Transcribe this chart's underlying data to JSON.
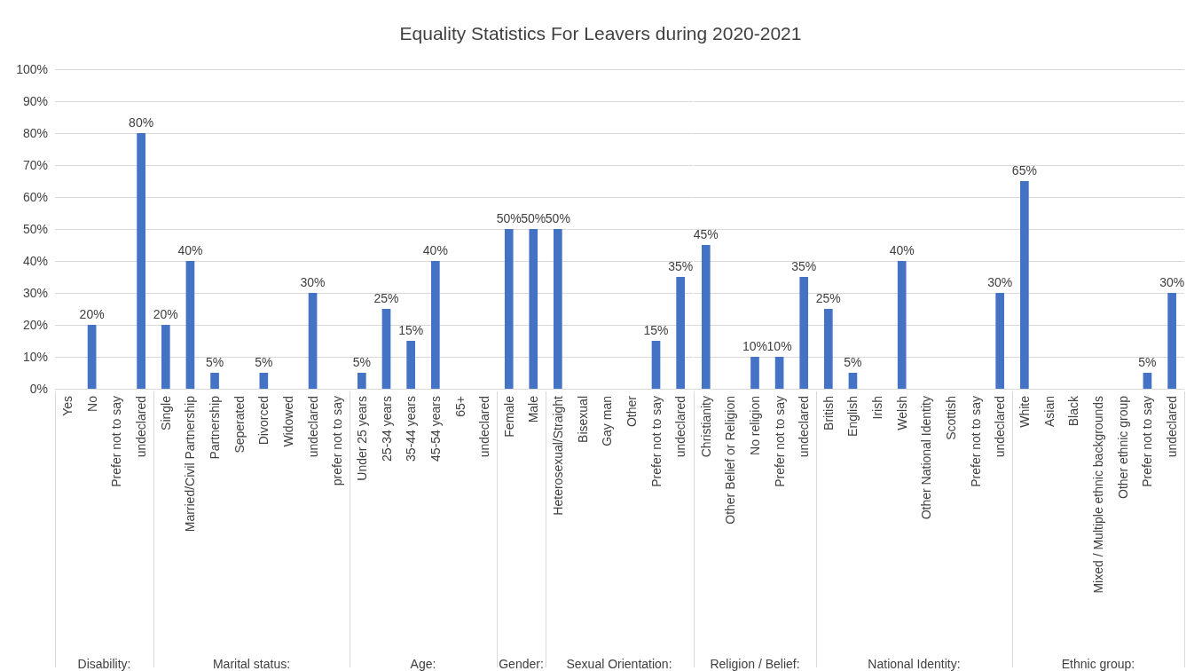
{
  "chart_data": [
    {
      "type": "other",
      "title": "Equality Statistics For Leavers during 2020-2021"
    },
    {
      "type": "bar",
      "xlabel": "Disability:",
      "categories": [
        "Yes",
        "No",
        "Prefer not to say",
        "undeclared"
      ],
      "values": [
        null,
        20,
        null,
        80
      ],
      "value_labels": [
        null,
        "20%",
        null,
        "80%"
      ],
      "color": "#4472c4",
      "ylim": [
        0,
        100
      ],
      "yticks": [
        {
          "value": 0,
          "label": "0%"
        },
        {
          "value": 10,
          "label": "10%"
        },
        {
          "value": 20,
          "label": "20%"
        },
        {
          "value": 30,
          "label": "30%"
        },
        {
          "value": 40,
          "label": "40%"
        },
        {
          "value": 50,
          "label": "50%"
        },
        {
          "value": 60,
          "label": "60%"
        },
        {
          "value": 70,
          "label": "70%"
        },
        {
          "value": 80,
          "label": "80%"
        },
        {
          "value": 90,
          "label": "90%"
        },
        {
          "value": 100,
          "label": "100%"
        }
      ],
      "grid": "y"
    },
    {
      "type": "bar",
      "xlabel": "Marital status:",
      "categories": [
        "Single",
        "Married/Civil Partnership",
        "Partnership",
        "Seperated",
        "Divorced",
        "Widowed",
        "undeclared",
        "prefer not to say"
      ],
      "values": [
        20,
        40,
        5,
        null,
        5,
        null,
        30,
        null
      ],
      "value_labels": [
        "20%",
        "40%",
        "5%",
        null,
        "5%",
        null,
        "30%",
        null
      ],
      "color": "#4472c4",
      "ylim": [
        0,
        100
      ],
      "yticks": [
        0,
        10,
        20,
        30,
        40,
        50,
        60,
        70,
        80,
        90,
        100
      ],
      "grid": "y",
      "tick_labels": "x"
    },
    {
      "type": "bar",
      "xlabel": "Age:",
      "categories": [
        "Under 25 years",
        "25-34 years",
        "35-44 years",
        "45-54 years",
        "65+",
        "undeclared"
      ],
      "values": [
        5,
        25,
        15,
        40,
        null,
        null
      ],
      "value_labels": [
        "5%",
        "25%",
        "15%",
        "40%",
        null,
        null
      ],
      "color": "#4472c4",
      "ylim": [
        0,
        100
      ],
      "yticks": [
        0,
        10,
        20,
        30,
        40,
        50,
        60,
        70,
        80,
        90,
        100
      ],
      "grid": "y",
      "tick_labels": "x"
    },
    {
      "type": "bar",
      "xlabel": "Gender:",
      "categories": [
        "Female",
        "Male"
      ],
      "values": [
        50,
        50
      ],
      "value_labels": [
        "50%",
        "50%"
      ],
      "color": "#4472c4",
      "ylim": [
        0,
        100
      ],
      "yticks": [
        0,
        10,
        20,
        30,
        40,
        50,
        60,
        70,
        80,
        90,
        100
      ],
      "grid": "y",
      "tick_labels": "x"
    },
    {
      "type": "bar",
      "xlabel": "Sexual Orientation:",
      "categories": [
        "Heterosexual/Straight",
        "Bisexual",
        "Gay man",
        "Other",
        "Prefer not to say",
        "undeclared"
      ],
      "values": [
        50,
        null,
        null,
        null,
        15,
        35
      ],
      "value_labels": [
        "50%",
        null,
        null,
        null,
        "15%",
        "35%"
      ],
      "color": "#4472c4",
      "ylim": [
        0,
        100
      ],
      "yticks": [
        0,
        10,
        20,
        30,
        40,
        50,
        60,
        70,
        80,
        90,
        100
      ],
      "grid": "y",
      "tick_labels": "x"
    },
    {
      "type": "bar",
      "xlabel": "Religion / Belief:",
      "categories": [
        "Christianity",
        "Other Belief or Religion",
        "No religion",
        "Prefer not to say",
        "undeclared"
      ],
      "values": [
        45,
        null,
        10,
        10,
        35
      ],
      "value_labels": [
        "45%",
        null,
        "10%",
        "10%",
        "35%"
      ],
      "color": "#4472c4",
      "ylim": [
        0,
        100
      ],
      "yticks": [
        0,
        10,
        20,
        30,
        40,
        50,
        60,
        70,
        80,
        90,
        100
      ],
      "grid": "y",
      "tick_labels": "x"
    },
    {
      "type": "bar",
      "xlabel": "National Identity:",
      "categories": [
        "British",
        "English",
        "Irish",
        "Welsh",
        "Other National Identity",
        "Scottish",
        "Prefer not to say",
        "undeclared"
      ],
      "values": [
        25,
        5,
        null,
        40,
        null,
        null,
        null,
        30
      ],
      "value_labels": [
        "25%",
        "5%",
        null,
        "40%",
        null,
        null,
        null,
        "30%"
      ],
      "color": "#4472c4",
      "ylim": [
        0,
        100
      ],
      "yticks": [
        0,
        10,
        20,
        30,
        40,
        50,
        60,
        70,
        80,
        90,
        100
      ],
      "grid": "y",
      "tick_labels": "x"
    },
    {
      "type": "bar",
      "xlabel": "Ethnic group:",
      "categories": [
        "White",
        "Asian",
        "Black",
        "Mixed / Multiple ethnic backgrounds",
        "Other ethnic group",
        "Prefer not to say",
        "undeclared"
      ],
      "values": [
        65,
        null,
        null,
        null,
        null,
        5,
        30
      ],
      "value_labels": [
        "65%",
        null,
        null,
        null,
        null,
        "5%",
        "30%"
      ],
      "color": "#4472c4",
      "ylim": [
        0,
        100
      ],
      "yticks": [
        0,
        10,
        20,
        30,
        40,
        50,
        60,
        70,
        80,
        90,
        100
      ],
      "grid": "y",
      "tick_labels": "x"
    }
  ]
}
